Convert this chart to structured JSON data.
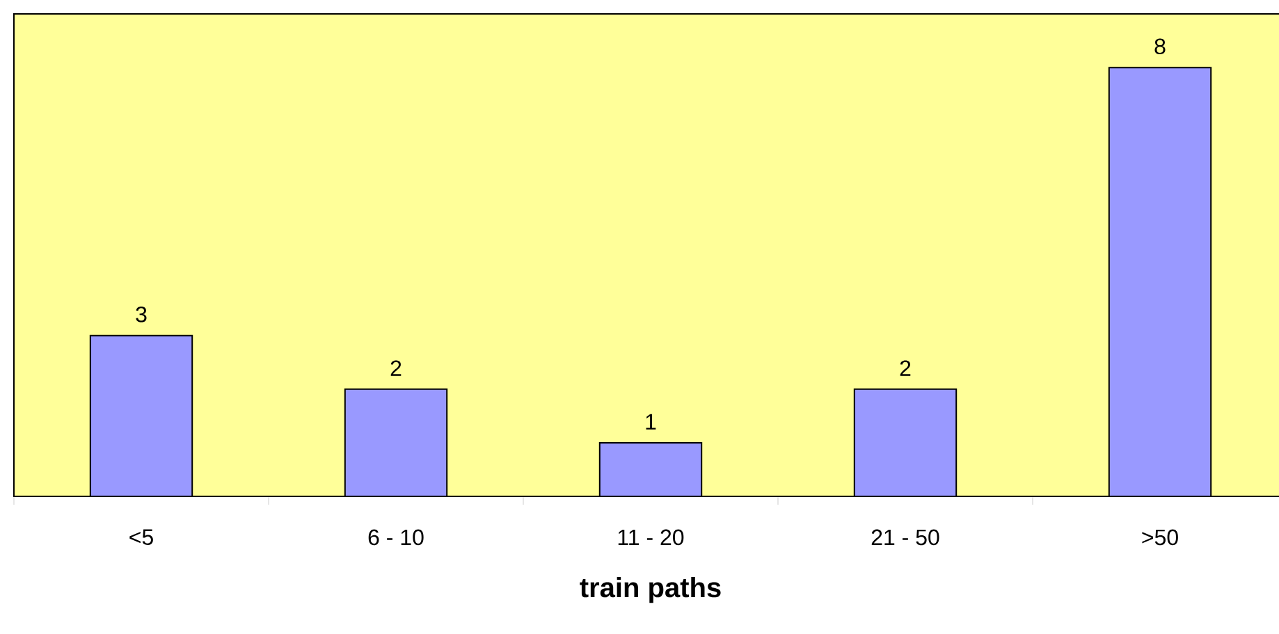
{
  "chart_data": {
    "type": "bar",
    "xlabel": "train paths",
    "categories": [
      "<5",
      "6 - 10",
      "11 - 20",
      "21 - 50",
      ">50"
    ],
    "values": [
      3,
      2,
      1,
      2,
      8
    ],
    "color": "#9999ff",
    "data_labels": true
  }
}
